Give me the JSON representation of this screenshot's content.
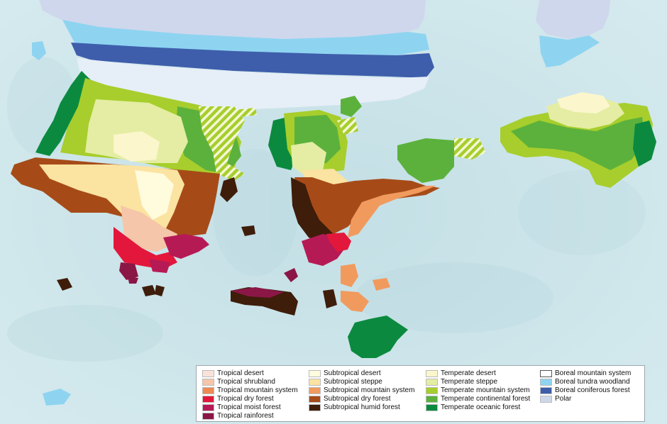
{
  "legend": {
    "columns": [
      [
        {
          "label": "Tropical desert",
          "color": "#fbe2d9"
        },
        {
          "label": "Tropical shrubland",
          "color": "#f5c6a9"
        },
        {
          "label": "Tropical mountain system",
          "color": "#ee8a52"
        },
        {
          "label": "Tropical dry forest",
          "color": "#e3173c"
        },
        {
          "label": "Tropical moist forest",
          "color": "#b61a55"
        },
        {
          "label": "Tropical rainforest",
          "color": "#8a1746"
        }
      ],
      [
        {
          "label": "Subtropical desert",
          "color": "#fffbdd"
        },
        {
          "label": "Subtropical steppe",
          "color": "#fbe3a1"
        },
        {
          "label": "Subtropical mountain system",
          "color": "#f19a5e"
        },
        {
          "label": "Subtropical dry forest",
          "color": "#a64b18"
        },
        {
          "label": "Subtropical humid forest",
          "color": "#3e1d0a"
        }
      ],
      [
        {
          "label": "Temperate desert",
          "color": "#fbf6cc"
        },
        {
          "label": "Temperate steppe",
          "color": "#e4eda3"
        },
        {
          "label": "Temperate mountain system",
          "color": "#a7ce2c"
        },
        {
          "label": "Temperate continental forest",
          "color": "#5cb13c"
        },
        {
          "label": "Temperate oceanic forest",
          "color": "#0b8a3f"
        }
      ],
      [
        {
          "label": "Boreal mountain system",
          "color": "#ffffff"
        },
        {
          "label": "Boreal tundra woodland",
          "color": "#8ed4f1"
        },
        {
          "label": "Boreal coniferous forest",
          "color": "#3e5eab"
        },
        {
          "label": "Polar",
          "color": "#cfd8ea"
        }
      ]
    ]
  },
  "colors": {
    "ocean": "#c8e2e7",
    "ice_sheet": "#cfd7ec",
    "boreal_mountain": "#e6eef8"
  }
}
